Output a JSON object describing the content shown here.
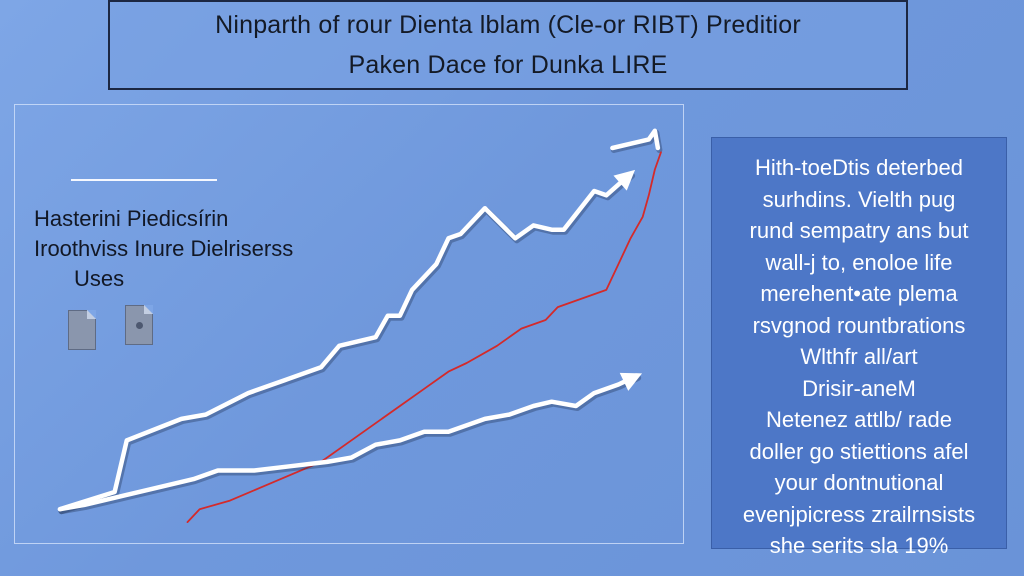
{
  "title": {
    "line1": "Ninparth of rour Dienta lblam (Cle-or RIBT) Preditior",
    "line2": "Paken Dace for Dunka LIRE"
  },
  "legend": {
    "lines": [
      "Hasterini Piedicsírin",
      "Iroothviss Inure Dielriserss",
      "Uses"
    ]
  },
  "icons": [
    "document-icon",
    "document-icon"
  ],
  "panel": {
    "lines": [
      "Hith-toeDtis deterbed",
      "surhdins. Vielth pug",
      "rund sempatry ans but",
      "wall-j to, enoloe life",
      "merehent•ate plema",
      "rsvgnod rountbrations",
      "Wlthfr all/art",
      "Drisir-aneM",
      "Netenez attlb/ rade",
      "doller go stiettions afel",
      "your dontnutional",
      "evenjpicress zrailrnsists",
      "she serits sla 19%"
    ]
  },
  "chart_data": {
    "type": "line",
    "title": "Ninparth of rour Dienta lblam (Cle-or RIBT) Preditior Paken Dace for Dunka LIRE",
    "xlabel": "",
    "ylabel": "",
    "xlim": [
      0,
      100
    ],
    "ylim": [
      0,
      100
    ],
    "grid": false,
    "series": [
      {
        "color": "#ffffff",
        "arrow": true,
        "x": [
          0,
          9,
          11,
          20,
          24,
          31,
          37,
          43,
          46,
          52,
          54,
          56,
          58,
          62,
          64,
          66,
          70,
          75,
          78,
          81,
          83,
          88,
          90,
          94
        ],
        "y": [
          6,
          10,
          22,
          27,
          28,
          33,
          36,
          39,
          44,
          46,
          51,
          51,
          57,
          63,
          69,
          70,
          76,
          69,
          72,
          71,
          71,
          80,
          79,
          84
        ]
      },
      {
        "color": "#ffffff",
        "arrow": false,
        "x": [
          91,
          97,
          98,
          98.5
        ],
        "y": [
          90,
          92,
          94,
          90
        ]
      },
      {
        "color": "#d42a2a",
        "arrow": false,
        "x": [
          21,
          23,
          28,
          33,
          38,
          43,
          47,
          52,
          56,
          60,
          64,
          67,
          72,
          76,
          80,
          82,
          86,
          90,
          92,
          94,
          96,
          97,
          98,
          99
        ],
        "y": [
          3,
          6,
          8,
          11,
          14,
          17,
          21,
          26,
          30,
          34,
          38,
          40,
          44,
          48,
          50,
          53,
          55,
          57,
          63,
          69,
          74,
          79,
          85,
          89
        ]
      },
      {
        "color": "#ffffff",
        "arrow": true,
        "x": [
          0,
          4,
          10,
          16,
          22,
          26,
          32,
          38,
          44,
          48,
          52,
          56,
          60,
          64,
          70,
          74,
          78,
          81,
          85,
          88,
          92,
          95
        ],
        "y": [
          6,
          7,
          9,
          11,
          13,
          15,
          15,
          16,
          17,
          18,
          21,
          22,
          24,
          24,
          27,
          28,
          30,
          31,
          30,
          33,
          35,
          37
        ]
      }
    ]
  }
}
